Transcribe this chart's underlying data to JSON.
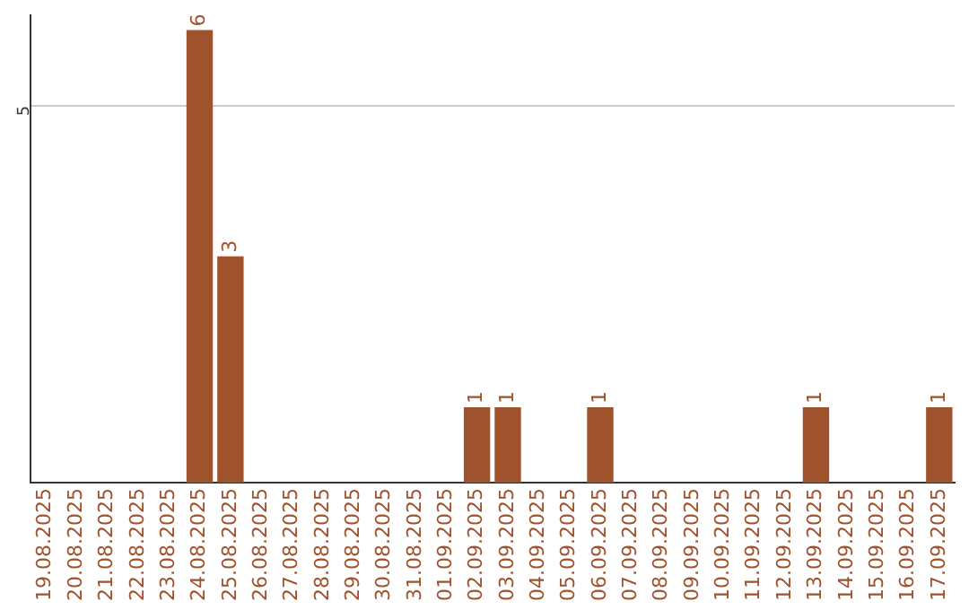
{
  "chart_data": {
    "type": "bar",
    "categories": [
      "19.08.2025",
      "20.08.2025",
      "21.08.2025",
      "22.08.2025",
      "23.08.2025",
      "24.08.2025",
      "25.08.2025",
      "26.08.2025",
      "27.08.2025",
      "28.08.2025",
      "29.08.2025",
      "30.08.2025",
      "31.08.2025",
      "01.09.2025",
      "02.09.2025",
      "03.09.2025",
      "04.09.2025",
      "05.09.2025",
      "06.09.2025",
      "07.09.2025",
      "08.09.2025",
      "09.09.2025",
      "10.09.2025",
      "11.09.2025",
      "12.09.2025",
      "13.09.2025",
      "14.09.2025",
      "15.09.2025",
      "16.09.2025",
      "17.09.2025"
    ],
    "values": [
      0,
      0,
      0,
      0,
      0,
      6,
      3,
      0,
      0,
      0,
      0,
      0,
      0,
      0,
      1,
      1,
      0,
      0,
      1,
      0,
      0,
      0,
      0,
      0,
      0,
      1,
      0,
      0,
      0,
      1
    ],
    "value_labels": [
      null,
      null,
      null,
      null,
      null,
      "6",
      "3",
      null,
      null,
      null,
      null,
      null,
      null,
      null,
      "1",
      "1",
      null,
      null,
      "1",
      null,
      null,
      null,
      null,
      null,
      null,
      "1",
      null,
      null,
      null,
      "1"
    ],
    "color": "#a0522d",
    "ylim": [
      0,
      6.2
    ],
    "yticks": [
      5
    ],
    "grid": "y",
    "legend": false
  }
}
